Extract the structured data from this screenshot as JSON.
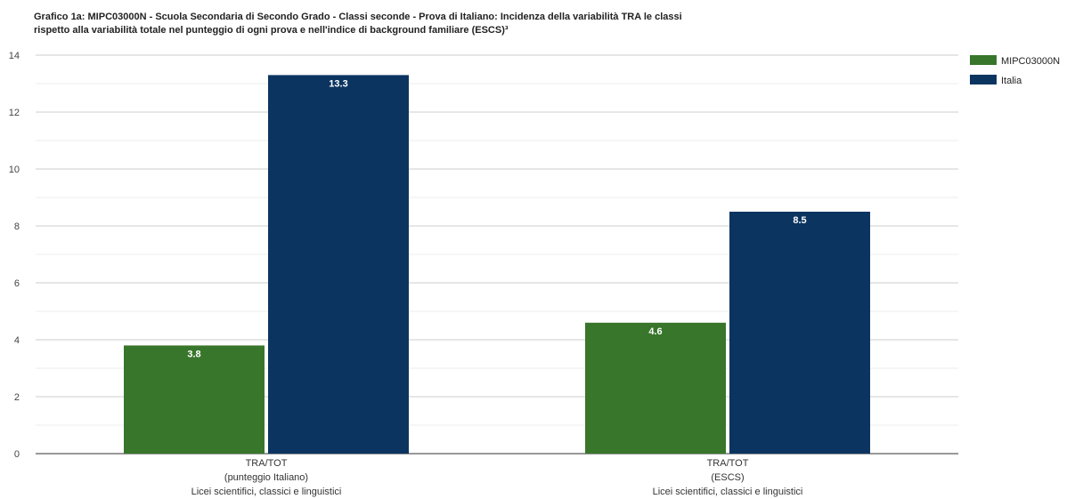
{
  "chart_data": {
    "type": "bar",
    "title_lines": [
      "Grafico 1a: MIPC03000N - Scuola Secondaria di Secondo Grado - Classi seconde - Prova di Italiano: Incidenza della variabilità TRA le classi",
      "rispetto alla variabilità totale nel punteggio di ogni prova e nell'indice di background familiare (ESCS)³"
    ],
    "categories": [
      [
        "TRA/TOT",
        "(punteggio Italiano)",
        "Licei scientifici, classici e linguistici"
      ],
      [
        "TRA/TOT",
        "(ESCS)",
        "Licei scientifici, classici e linguistici"
      ]
    ],
    "series": [
      {
        "name": "MIPC03000N",
        "color": "#38762b",
        "values": [
          3.8,
          4.6
        ]
      },
      {
        "name": "Italia",
        "color": "#0b3560",
        "values": [
          13.3,
          8.5
        ]
      }
    ],
    "ylim": [
      0,
      14
    ],
    "yticks": [
      0,
      2,
      4,
      6,
      8,
      10,
      12,
      14
    ],
    "grid": true,
    "legend_position": "top-right"
  }
}
